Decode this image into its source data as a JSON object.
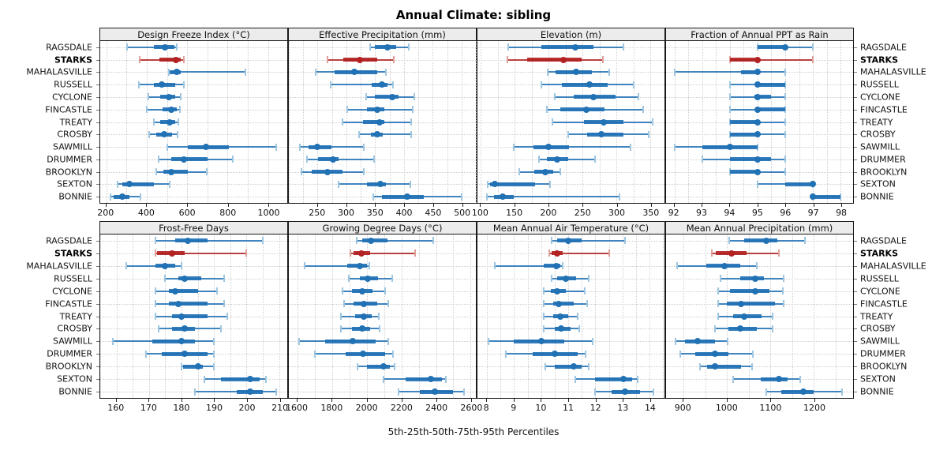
{
  "colors": {
    "series": "#2171b5",
    "series_light": "#9ec6e0",
    "highlight": "#b22222",
    "highlight_light": "#dfa09a",
    "grid": "#cfcfcf",
    "strip_bg": "#ececec",
    "border": "#1a1a1a"
  },
  "chart_data": {
    "type": "percentile-dotplot",
    "title": "Annual Climate: sibling",
    "caption": "5th-25th-50th-75th-95th Percentiles",
    "percentiles": [
      5,
      25,
      50,
      75,
      95
    ],
    "legend_position": "none",
    "grid": "dotted",
    "stations": [
      {
        "name": "RAGSDALE",
        "highlight": false
      },
      {
        "name": "STARKS",
        "highlight": true
      },
      {
        "name": "MAHALASVILLE",
        "highlight": false
      },
      {
        "name": "RUSSELL",
        "highlight": false
      },
      {
        "name": "CYCLONE",
        "highlight": false
      },
      {
        "name": "FINCASTLE",
        "highlight": false
      },
      {
        "name": "TREATY",
        "highlight": false
      },
      {
        "name": "CROSBY",
        "highlight": false
      },
      {
        "name": "SAWMILL",
        "highlight": false
      },
      {
        "name": "DRUMMER",
        "highlight": false
      },
      {
        "name": "BROOKLYN",
        "highlight": false
      },
      {
        "name": "SEXTON",
        "highlight": false
      },
      {
        "name": "BONNIE",
        "highlight": false
      }
    ],
    "panels": [
      {
        "label": "Design Freeze Index (°C)",
        "row": 1,
        "xlim": [
          170,
          1095
        ],
        "ticks": [
          200,
          400,
          600,
          800,
          1000
        ],
        "series": [
          [
            302,
            437,
            491,
            536,
            548
          ],
          [
            365,
            462,
            545,
            567,
            585
          ],
          [
            510,
            514,
            547,
            570,
            888
          ],
          [
            363,
            437,
            476,
            540,
            583
          ],
          [
            410,
            468,
            510,
            540,
            570
          ],
          [
            400,
            478,
            520,
            550,
            565
          ],
          [
            434,
            465,
            512,
            540,
            557
          ],
          [
            413,
            449,
            486,
            527,
            553
          ],
          [
            500,
            605,
            693,
            805,
            1040
          ],
          [
            458,
            520,
            583,
            702,
            825
          ],
          [
            447,
            482,
            522,
            605,
            698
          ],
          [
            257,
            281,
            313,
            436,
            514
          ],
          [
            222,
            235,
            280,
            313,
            370
          ]
        ]
      },
      {
        "label": "Effective Precipitation (mm)",
        "row": 1,
        "xlim": [
          200,
          525
        ],
        "ticks": [
          250,
          300,
          350,
          400,
          450,
          500
        ],
        "series": [
          [
            341,
            350,
            372,
            386,
            409
          ],
          [
            267,
            295,
            323,
            354,
            383
          ],
          [
            247,
            280,
            314,
            354,
            369
          ],
          [
            273,
            344,
            362,
            371,
            381
          ],
          [
            334,
            349,
            379,
            390,
            418
          ],
          [
            301,
            336,
            354,
            366,
            415
          ],
          [
            293,
            329,
            358,
            366,
            412
          ],
          [
            322,
            342,
            354,
            363,
            412
          ],
          [
            219,
            234,
            249,
            274,
            330
          ],
          [
            232,
            251,
            277,
            287,
            348
          ],
          [
            222,
            240,
            267,
            293,
            330
          ],
          [
            287,
            336,
            359,
            368,
            411
          ],
          [
            347,
            362,
            406,
            434,
            500
          ]
        ]
      },
      {
        "label": "Elevation (m)",
        "row": 1,
        "xlim": [
          95,
          371
        ],
        "ticks": [
          100,
          150,
          200,
          250,
          300,
          350
        ],
        "series": [
          [
            141,
            189,
            239,
            266,
            310
          ],
          [
            139,
            168,
            222,
            249,
            280
          ],
          [
            199,
            210,
            240,
            264,
            289
          ],
          [
            189,
            220,
            260,
            287,
            325
          ],
          [
            209,
            237,
            266,
            299,
            332
          ],
          [
            198,
            217,
            256,
            283,
            339
          ],
          [
            206,
            252,
            281,
            310,
            353
          ],
          [
            229,
            257,
            278,
            310,
            348
          ],
          [
            149,
            178,
            200,
            230,
            321
          ],
          [
            186,
            198,
            213,
            229,
            269
          ],
          [
            157,
            179,
            195,
            207,
            217
          ],
          [
            110,
            114,
            121,
            180,
            202
          ],
          [
            109,
            119,
            132,
            149,
            305
          ]
        ]
      },
      {
        "label": "Fraction of Annual PPT as Rain",
        "row": 1,
        "xlim": [
          91.7,
          98.45
        ],
        "ticks": [
          92,
          93,
          94,
          95,
          96,
          97,
          98
        ],
        "series": [
          [
            95,
            95,
            96,
            96,
            97
          ],
          [
            94,
            94,
            95,
            95,
            97
          ],
          [
            92,
            94.4,
            95,
            95.1,
            96
          ],
          [
            94,
            95,
            95,
            96,
            96
          ],
          [
            94,
            94.9,
            95,
            95.5,
            96
          ],
          [
            94,
            95,
            95,
            96,
            96
          ],
          [
            94,
            94,
            95,
            95,
            96
          ],
          [
            94,
            94,
            95,
            95,
            96
          ],
          [
            92,
            93,
            94,
            95,
            95
          ],
          [
            93,
            94,
            95,
            95.5,
            96
          ],
          [
            94,
            94,
            95,
            95,
            96
          ],
          [
            95,
            96,
            97,
            97,
            97
          ],
          [
            97,
            97,
            97,
            98,
            98
          ]
        ]
      },
      {
        "label": "Frost-Free Days",
        "row": 2,
        "xlim": [
          155,
          212.5
        ],
        "ticks": [
          160,
          170,
          180,
          190,
          200,
          210
        ],
        "series": [
          [
            172,
            178,
            182,
            188,
            205
          ],
          [
            172,
            172.5,
            177,
            181,
            200
          ],
          [
            163,
            172,
            175,
            178,
            180
          ],
          [
            175,
            179,
            181,
            186,
            193
          ],
          [
            172,
            176,
            178,
            185,
            191
          ],
          [
            172,
            176,
            179,
            188,
            193
          ],
          [
            172,
            177,
            180,
            188,
            194
          ],
          [
            173,
            177,
            181,
            184,
            192
          ],
          [
            159,
            171,
            180,
            184,
            190
          ],
          [
            169,
            174,
            181,
            188,
            190
          ],
          [
            180,
            180.5,
            185,
            186.5,
            190
          ],
          [
            187,
            192,
            201,
            204,
            206
          ],
          [
            184,
            197,
            201,
            205,
            209
          ]
        ]
      },
      {
        "label": "Growing Degree Days (°C)",
        "row": 2,
        "xlim": [
          1550,
          2630
        ],
        "ticks": [
          1600,
          1800,
          2000,
          2200,
          2400,
          2600
        ],
        "series": [
          [
            1940,
            1975,
            2025,
            2120,
            2385
          ],
          [
            1905,
            1925,
            1970,
            2020,
            2280
          ],
          [
            1640,
            1885,
            1960,
            2000,
            2015
          ],
          [
            1895,
            1960,
            2005,
            2065,
            2145
          ],
          [
            1860,
            1915,
            1975,
            2035,
            2105
          ],
          [
            1870,
            1925,
            1985,
            2060,
            2125
          ],
          [
            1850,
            1935,
            1985,
            2030,
            2070
          ],
          [
            1850,
            1915,
            1975,
            2020,
            2075
          ],
          [
            1610,
            1760,
            1920,
            2050,
            2125
          ],
          [
            1700,
            1880,
            1980,
            2105,
            2150
          ],
          [
            1945,
            2000,
            2095,
            2135,
            2160
          ],
          [
            2095,
            2225,
            2370,
            2435,
            2455
          ],
          [
            2185,
            2305,
            2395,
            2500,
            2560
          ]
        ]
      },
      {
        "label": "Mean Annual Air Temperature (°C)",
        "row": 2,
        "xlim": [
          7.65,
          14.55
        ],
        "ticks": [
          8,
          9,
          10,
          11,
          12,
          13,
          14
        ],
        "series": [
          [
            10.4,
            10.6,
            11.0,
            11.5,
            13.1
          ],
          [
            10.3,
            10.4,
            10.6,
            10.8,
            12.5
          ],
          [
            8.3,
            10.1,
            10.55,
            10.7,
            10.8
          ],
          [
            10.4,
            10.6,
            10.9,
            11.3,
            11.75
          ],
          [
            10.1,
            10.35,
            10.6,
            10.9,
            11.6
          ],
          [
            10.1,
            10.45,
            10.65,
            11.2,
            11.7
          ],
          [
            10.1,
            10.45,
            10.7,
            11.0,
            11.35
          ],
          [
            10.1,
            10.5,
            10.75,
            11.1,
            11.4
          ],
          [
            8.05,
            9.0,
            10.0,
            10.85,
            11.9
          ],
          [
            8.7,
            9.7,
            10.5,
            11.35,
            11.65
          ],
          [
            10.15,
            10.5,
            11.2,
            11.5,
            11.75
          ],
          [
            11.25,
            12.0,
            13.05,
            13.35,
            13.55
          ],
          [
            12.0,
            12.6,
            13.1,
            13.65,
            14.15
          ]
        ]
      },
      {
        "label": "Mean Annual Precipitation (mm)",
        "row": 2,
        "xlim": [
          860,
          1290
        ],
        "ticks": [
          900,
          1000,
          1100,
          1200
        ],
        "series": [
          [
            1005,
            1040,
            1090,
            1115,
            1180
          ],
          [
            965,
            975,
            1010,
            1045,
            1120
          ],
          [
            885,
            953,
            995,
            1030,
            1068
          ],
          [
            985,
            1030,
            1065,
            1085,
            1130
          ],
          [
            980,
            1007,
            1065,
            1097,
            1128
          ],
          [
            980,
            1000,
            1033,
            1110,
            1130
          ],
          [
            980,
            1015,
            1040,
            1080,
            1105
          ],
          [
            973,
            1003,
            1030,
            1068,
            1105
          ],
          [
            882,
            903,
            933,
            973,
            1001
          ],
          [
            892,
            927,
            973,
            1003,
            1060
          ],
          [
            938,
            955,
            973,
            1033,
            1058
          ],
          [
            1015,
            1078,
            1120,
            1140,
            1168
          ],
          [
            1090,
            1125,
            1175,
            1200,
            1265
          ]
        ]
      }
    ]
  }
}
